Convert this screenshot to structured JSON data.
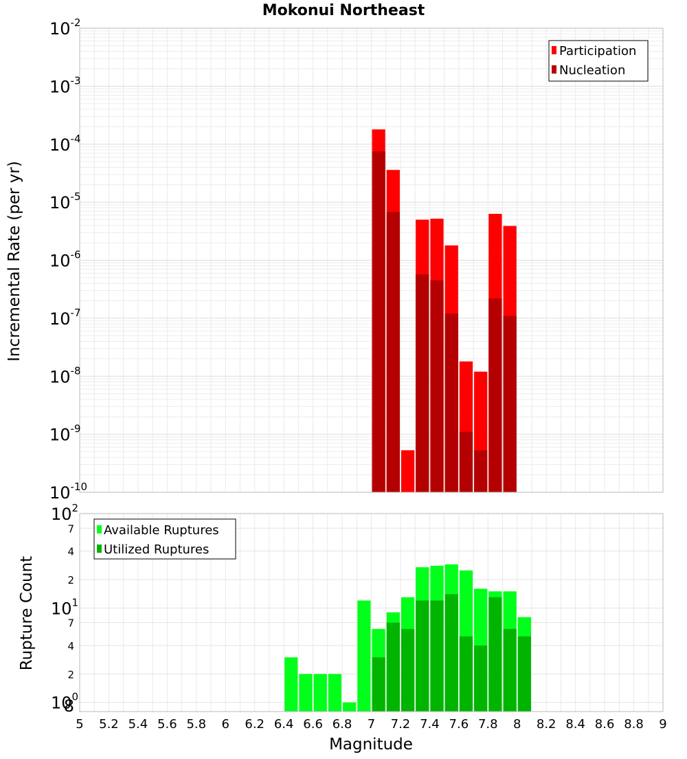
{
  "chart_data": [
    {
      "type": "bar",
      "title": "Mokonui Northeast",
      "xlabel": "Magnitude",
      "ylabel": "Incremental Rate (per yr)",
      "xlim": [
        5,
        9
      ],
      "ylim": [
        1e-10,
        0.01
      ],
      "yscale": "log",
      "grid": true,
      "legend_position": "top-right",
      "x_ticks": [
        "5",
        "5.2",
        "5.4",
        "5.6",
        "5.8",
        "6",
        "6.2",
        "6.4",
        "6.6",
        "6.8",
        "7",
        "7.2",
        "7.4",
        "7.6",
        "7.8",
        "8",
        "8.2",
        "8.4",
        "8.6",
        "8.8",
        "9"
      ],
      "y_tick_base": "10",
      "y_tick_exponents": [
        "-10",
        "-9",
        "-8",
        "-7",
        "-6",
        "-5",
        "-4",
        "-3",
        "-2"
      ],
      "x": [
        7.05,
        7.15,
        7.25,
        7.35,
        7.45,
        7.55,
        7.65,
        7.75,
        7.85,
        7.95
      ],
      "series": [
        {
          "name": "Participation",
          "color": "#ff0000",
          "values": [
            0.00018,
            3.6e-05,
            5.3e-10,
            5e-06,
            5.2e-06,
            1.8e-06,
            1.8e-08,
            1.2e-08,
            6.3e-06,
            3.9e-06
          ]
        },
        {
          "name": "Nucleation",
          "color": "#b40000",
          "values": [
            7.5e-05,
            6.8e-06,
            null,
            5.7e-07,
            4.5e-07,
            1.2e-07,
            1.1e-09,
            5.3e-10,
            2.2e-07,
            1.1e-07
          ]
        }
      ]
    },
    {
      "type": "bar",
      "title": "",
      "xlabel": "Magnitude",
      "ylabel": "Rupture Count",
      "xlim": [
        5,
        9
      ],
      "ylim": [
        0.8,
        100
      ],
      "yscale": "log",
      "grid": true,
      "legend_position": "top-left",
      "y_major_ticks": [
        {
          "base": "10",
          "exp": "0"
        },
        {
          "base": "10",
          "exp": "1"
        },
        {
          "base": "10",
          "exp": "2"
        }
      ],
      "y_minor_ticks": [
        "8",
        "2",
        "4",
        "7",
        "2",
        "4",
        "7"
      ],
      "x": [
        6.45,
        6.55,
        6.65,
        6.75,
        6.85,
        6.95,
        7.05,
        7.15,
        7.25,
        7.35,
        7.45,
        7.55,
        7.65,
        7.75,
        7.85,
        7.95,
        8.05
      ],
      "series": [
        {
          "name": "Available Ruptures",
          "color": "#00ff1a",
          "values": [
            3,
            2,
            2,
            2,
            1,
            12,
            6,
            9,
            13,
            27,
            28,
            29,
            25,
            16,
            15,
            15,
            8
          ]
        },
        {
          "name": "Utilized Ruptures",
          "color": "#00b400",
          "values": [
            null,
            null,
            null,
            null,
            null,
            null,
            3,
            7,
            6,
            12,
            12,
            14,
            5,
            4,
            13,
            6,
            5
          ]
        }
      ]
    }
  ]
}
